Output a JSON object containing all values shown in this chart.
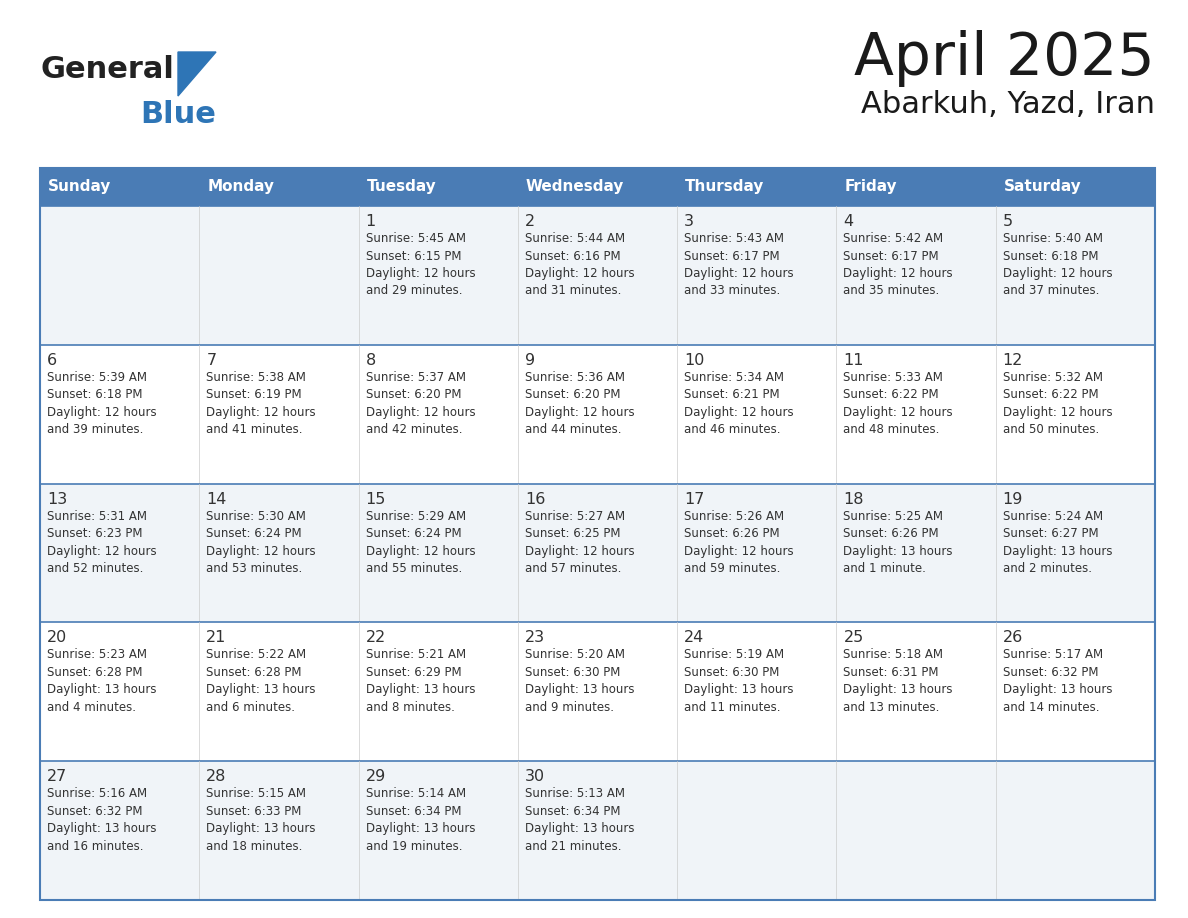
{
  "title": "April 2025",
  "subtitle": "Abarkuh, Yazd, Iran",
  "days_of_week": [
    "Sunday",
    "Monday",
    "Tuesday",
    "Wednesday",
    "Thursday",
    "Friday",
    "Saturday"
  ],
  "header_bg": "#4A7CB5",
  "header_text_color": "#FFFFFF",
  "row_bg_odd": "#F0F4F8",
  "row_bg_even": "#FFFFFF",
  "cell_text_color": "#333333",
  "grid_line_color": "#4A7CB5",
  "logo_general_color": "#222222",
  "logo_blue_color": "#2E75B6",
  "calendar_data": [
    [
      {
        "day": null,
        "text": ""
      },
      {
        "day": null,
        "text": ""
      },
      {
        "day": 1,
        "text": "Sunrise: 5:45 AM\nSunset: 6:15 PM\nDaylight: 12 hours\nand 29 minutes."
      },
      {
        "day": 2,
        "text": "Sunrise: 5:44 AM\nSunset: 6:16 PM\nDaylight: 12 hours\nand 31 minutes."
      },
      {
        "day": 3,
        "text": "Sunrise: 5:43 AM\nSunset: 6:17 PM\nDaylight: 12 hours\nand 33 minutes."
      },
      {
        "day": 4,
        "text": "Sunrise: 5:42 AM\nSunset: 6:17 PM\nDaylight: 12 hours\nand 35 minutes."
      },
      {
        "day": 5,
        "text": "Sunrise: 5:40 AM\nSunset: 6:18 PM\nDaylight: 12 hours\nand 37 minutes."
      }
    ],
    [
      {
        "day": 6,
        "text": "Sunrise: 5:39 AM\nSunset: 6:18 PM\nDaylight: 12 hours\nand 39 minutes."
      },
      {
        "day": 7,
        "text": "Sunrise: 5:38 AM\nSunset: 6:19 PM\nDaylight: 12 hours\nand 41 minutes."
      },
      {
        "day": 8,
        "text": "Sunrise: 5:37 AM\nSunset: 6:20 PM\nDaylight: 12 hours\nand 42 minutes."
      },
      {
        "day": 9,
        "text": "Sunrise: 5:36 AM\nSunset: 6:20 PM\nDaylight: 12 hours\nand 44 minutes."
      },
      {
        "day": 10,
        "text": "Sunrise: 5:34 AM\nSunset: 6:21 PM\nDaylight: 12 hours\nand 46 minutes."
      },
      {
        "day": 11,
        "text": "Sunrise: 5:33 AM\nSunset: 6:22 PM\nDaylight: 12 hours\nand 48 minutes."
      },
      {
        "day": 12,
        "text": "Sunrise: 5:32 AM\nSunset: 6:22 PM\nDaylight: 12 hours\nand 50 minutes."
      }
    ],
    [
      {
        "day": 13,
        "text": "Sunrise: 5:31 AM\nSunset: 6:23 PM\nDaylight: 12 hours\nand 52 minutes."
      },
      {
        "day": 14,
        "text": "Sunrise: 5:30 AM\nSunset: 6:24 PM\nDaylight: 12 hours\nand 53 minutes."
      },
      {
        "day": 15,
        "text": "Sunrise: 5:29 AM\nSunset: 6:24 PM\nDaylight: 12 hours\nand 55 minutes."
      },
      {
        "day": 16,
        "text": "Sunrise: 5:27 AM\nSunset: 6:25 PM\nDaylight: 12 hours\nand 57 minutes."
      },
      {
        "day": 17,
        "text": "Sunrise: 5:26 AM\nSunset: 6:26 PM\nDaylight: 12 hours\nand 59 minutes."
      },
      {
        "day": 18,
        "text": "Sunrise: 5:25 AM\nSunset: 6:26 PM\nDaylight: 13 hours\nand 1 minute."
      },
      {
        "day": 19,
        "text": "Sunrise: 5:24 AM\nSunset: 6:27 PM\nDaylight: 13 hours\nand 2 minutes."
      }
    ],
    [
      {
        "day": 20,
        "text": "Sunrise: 5:23 AM\nSunset: 6:28 PM\nDaylight: 13 hours\nand 4 minutes."
      },
      {
        "day": 21,
        "text": "Sunrise: 5:22 AM\nSunset: 6:28 PM\nDaylight: 13 hours\nand 6 minutes."
      },
      {
        "day": 22,
        "text": "Sunrise: 5:21 AM\nSunset: 6:29 PM\nDaylight: 13 hours\nand 8 minutes."
      },
      {
        "day": 23,
        "text": "Sunrise: 5:20 AM\nSunset: 6:30 PM\nDaylight: 13 hours\nand 9 minutes."
      },
      {
        "day": 24,
        "text": "Sunrise: 5:19 AM\nSunset: 6:30 PM\nDaylight: 13 hours\nand 11 minutes."
      },
      {
        "day": 25,
        "text": "Sunrise: 5:18 AM\nSunset: 6:31 PM\nDaylight: 13 hours\nand 13 minutes."
      },
      {
        "day": 26,
        "text": "Sunrise: 5:17 AM\nSunset: 6:32 PM\nDaylight: 13 hours\nand 14 minutes."
      }
    ],
    [
      {
        "day": 27,
        "text": "Sunrise: 5:16 AM\nSunset: 6:32 PM\nDaylight: 13 hours\nand 16 minutes."
      },
      {
        "day": 28,
        "text": "Sunrise: 5:15 AM\nSunset: 6:33 PM\nDaylight: 13 hours\nand 18 minutes."
      },
      {
        "day": 29,
        "text": "Sunrise: 5:14 AM\nSunset: 6:34 PM\nDaylight: 13 hours\nand 19 minutes."
      },
      {
        "day": 30,
        "text": "Sunrise: 5:13 AM\nSunset: 6:34 PM\nDaylight: 13 hours\nand 21 minutes."
      },
      {
        "day": null,
        "text": ""
      },
      {
        "day": null,
        "text": ""
      },
      {
        "day": null,
        "text": ""
      }
    ]
  ]
}
